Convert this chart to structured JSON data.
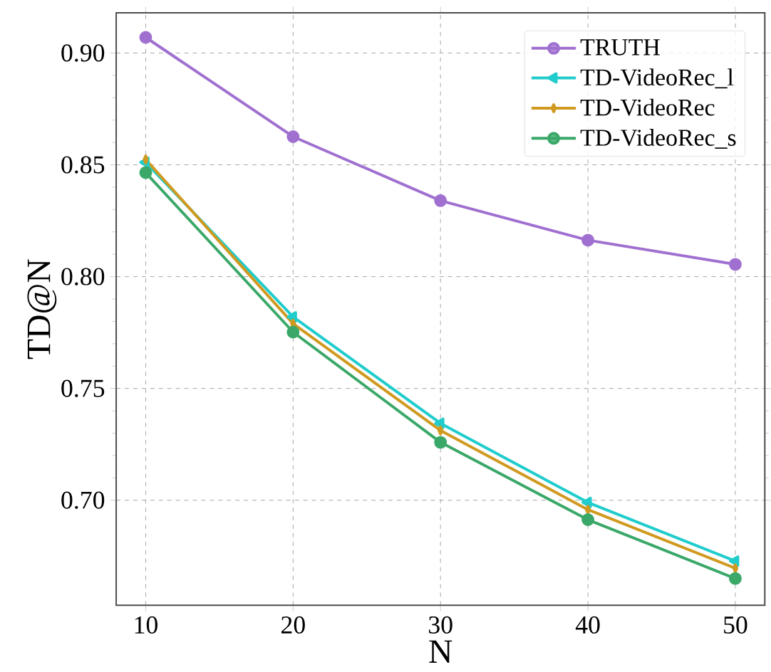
{
  "chart_data": {
    "type": "line",
    "xlabel": "N",
    "ylabel": "TD@N",
    "x": [
      10,
      20,
      30,
      40,
      50
    ],
    "series": [
      {
        "name": "TRUTH",
        "color": "#a070d0",
        "marker": "circle",
        "values": [
          0.907,
          0.8626,
          0.834,
          0.8163,
          0.8055
        ]
      },
      {
        "name": "TD-VideoRec_l",
        "color": "#20cccc",
        "marker": "triangle",
        "values": [
          0.8511,
          0.782,
          0.7344,
          0.699,
          0.6728
        ]
      },
      {
        "name": "TD-VideoRec",
        "color": "#d09a20",
        "marker": "diamond",
        "values": [
          0.8524,
          0.779,
          0.7312,
          0.6958,
          0.6696
        ]
      },
      {
        "name": "TD-VideoRec_s",
        "color": "#3aa868",
        "marker": "circle",
        "values": [
          0.8465,
          0.7752,
          0.7259,
          0.6913,
          0.665
        ]
      }
    ],
    "xlim": [
      8,
      52
    ],
    "xticks": [
      10,
      20,
      30,
      40,
      50
    ],
    "ylim": [
      0.653,
      0.918
    ],
    "yticks": [
      {
        "value": 0.7,
        "label": "0.70"
      },
      0.75,
      {
        "value": 0.8,
        "label": "0.80"
      },
      0.85,
      {
        "value": 0.9,
        "label": "0.90"
      }
    ],
    "grid": true,
    "legend": "top right",
    "line_style": "solid"
  }
}
